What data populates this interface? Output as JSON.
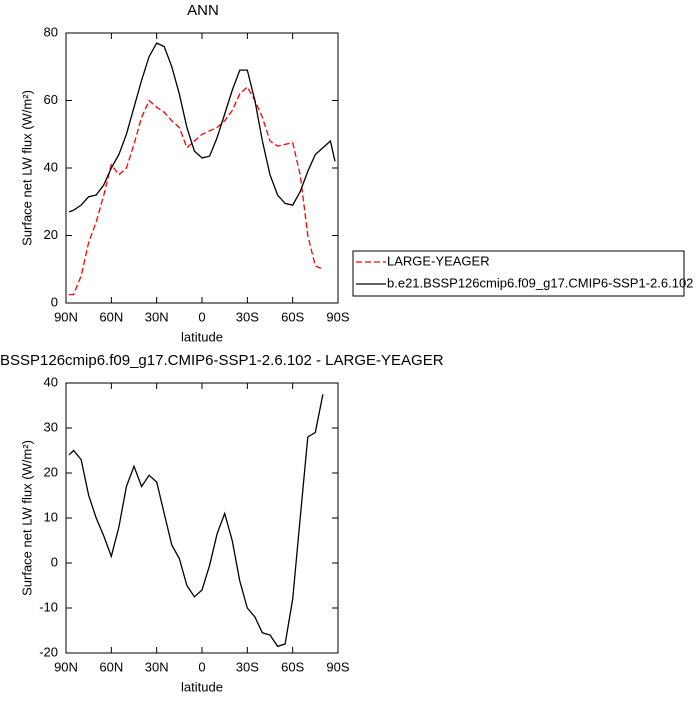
{
  "chart_data": [
    {
      "type": "line",
      "title": "ANN",
      "x_label": "latitude",
      "y_label": "Surface net LW flux (W/m²)",
      "x": [
        88,
        85,
        80,
        75,
        70,
        65,
        60,
        55,
        50,
        45,
        40,
        35,
        30,
        25,
        20,
        15,
        10,
        5,
        0,
        -5,
        -10,
        -15,
        -20,
        -25,
        -30,
        -35,
        -40,
        -45,
        -50,
        -55,
        -60,
        -65,
        -70,
        -75,
        -80,
        -85,
        -88
      ],
      "series": [
        {
          "name": "LARGE-YEAGER",
          "color": "#ff0000",
          "dash": true,
          "values": [
            2.5,
            2.5,
            8,
            18,
            24,
            32,
            41,
            38,
            40,
            47,
            55,
            60,
            58,
            56.5,
            54,
            52,
            46,
            48,
            50,
            51,
            52,
            54,
            57,
            62,
            64,
            60,
            55,
            48,
            46.5,
            47,
            47.5,
            38,
            20,
            11,
            10,
            null,
            null
          ]
        },
        {
          "name": "b.e21.BSSP126cmip6.f09_g17.CMIP6-SSP1-2.6.102",
          "color": "#000000",
          "dash": false,
          "values": [
            27,
            27.5,
            29,
            31.5,
            32,
            35,
            40,
            44,
            50,
            58,
            66,
            73,
            77,
            76,
            70,
            62,
            52,
            45,
            43,
            43.5,
            49,
            56,
            63,
            69,
            69,
            60,
            48,
            38,
            32,
            29.5,
            29,
            33,
            39,
            44,
            46,
            48,
            42
          ]
        }
      ],
      "xlim": [
        90,
        -90
      ],
      "xticks": [
        {
          "value": 90,
          "label": "90N"
        },
        {
          "value": 60,
          "label": "60N"
        },
        {
          "value": 30,
          "label": "30N"
        },
        0,
        {
          "value": -30,
          "label": "30S"
        },
        {
          "value": -60,
          "label": "60S"
        },
        {
          "value": -90,
          "label": "90S"
        }
      ],
      "ylim": [
        0,
        80
      ],
      "yticks": [
        0,
        20,
        40,
        60,
        80
      ],
      "legend": "right"
    },
    {
      "type": "line",
      "title": "BSSP126cmip6.f09_g17.CMIP6-SSP1-2.6.102 - LARGE-YEAGER",
      "x_label": "latitude",
      "y_label": "Surface net LW flux (W/m²)",
      "x": [
        88,
        85,
        80,
        75,
        70,
        65,
        60,
        55,
        50,
        45,
        40,
        35,
        30,
        25,
        20,
        15,
        10,
        5,
        0,
        -5,
        -10,
        -15,
        -20,
        -25,
        -30,
        -35,
        -40,
        -45,
        -50,
        -55,
        -60,
        -65,
        -70,
        -75,
        -80,
        -85,
        -88
      ],
      "series": [
        {
          "color": "#000000",
          "dash": false,
          "values": [
            24,
            25,
            23,
            15,
            10,
            6,
            1.5,
            8,
            17,
            21.5,
            17,
            19.5,
            18,
            11,
            4,
            1,
            -5,
            -7.5,
            -6,
            -0.5,
            6.5,
            11,
            5,
            -4,
            -10,
            -12,
            -15.5,
            -16,
            -18.5,
            -18,
            -8,
            10,
            28,
            29,
            37.5,
            null,
            null
          ]
        }
      ],
      "xlim": [
        90,
        -90
      ],
      "xticks": [
        {
          "value": 90,
          "label": "90N"
        },
        {
          "value": 60,
          "label": "60N"
        },
        {
          "value": 30,
          "label": "30N"
        },
        0,
        {
          "value": -30,
          "label": "30S"
        },
        {
          "value": -60,
          "label": "60S"
        },
        {
          "value": -90,
          "label": "90S"
        }
      ],
      "ylim": [
        -20,
        40
      ],
      "yticks": [
        -20,
        -10,
        0,
        10,
        20,
        30,
        40
      ]
    }
  ]
}
